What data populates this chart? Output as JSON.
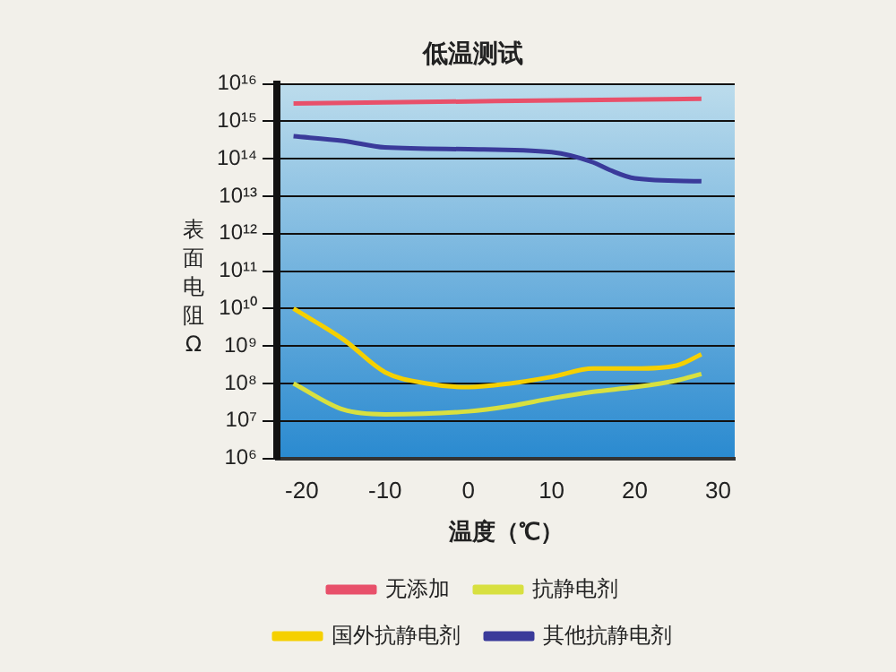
{
  "chart_data": {
    "type": "line",
    "title": "低温测试",
    "xlabel": "温度（℃）",
    "ylabel": "表面电阻Ω",
    "log": "y",
    "grid": "y",
    "legend": "bottom",
    "marker": "none",
    "line_style": "solid",
    "xlim": [
      -23,
      32
    ],
    "xticks": [
      -20,
      -10,
      0,
      10,
      20,
      30
    ],
    "ylim": [
      1000000,
      10000000000000000
    ],
    "yticks": [
      {
        "value": 1000000,
        "label": "10⁶"
      },
      {
        "value": 10000000,
        "label": "10⁷"
      },
      {
        "value": 100000000,
        "label": "10⁸"
      },
      {
        "value": 1000000000,
        "label": "10⁹"
      },
      {
        "value": 10000000000,
        "label": "10¹⁰"
      },
      {
        "value": 100000000000,
        "label": "10¹¹"
      },
      {
        "value": 1000000000000,
        "label": "10¹²"
      },
      {
        "value": 10000000000000,
        "label": "10¹³"
      },
      {
        "value": 100000000000000,
        "label": "10¹⁴"
      },
      {
        "value": 1000000000000000,
        "label": "10¹⁵"
      },
      {
        "value": 10000000000000000,
        "label": "10¹⁶"
      }
    ],
    "series": [
      {
        "name": "无添加",
        "color": "#e8506a",
        "x": [
          -21,
          28
        ],
        "values": [
          3000000000000000,
          4000000000000000
        ]
      },
      {
        "name": "抗静电剂",
        "color": "#d8e040",
        "x": [
          -21,
          -15,
          -10,
          0,
          5,
          10,
          15,
          20,
          25,
          28
        ],
        "values": [
          100000000,
          20000000,
          15000000,
          18000000,
          25000000,
          40000000,
          60000000,
          80000000,
          120000000,
          180000000
        ]
      },
      {
        "name": "国外抗静电剂",
        "color": "#f5d000",
        "x": [
          -21,
          -15,
          -10,
          -5,
          0,
          5,
          10,
          15,
          20,
          25,
          28
        ],
        "values": [
          10000000000,
          1500000000,
          200000000,
          100000000,
          80000000,
          100000000,
          150000000,
          250000000,
          250000000,
          300000000,
          600000000
        ]
      },
      {
        "name": "其他抗静电剂",
        "color": "#3a3a9a",
        "x": [
          -21,
          -15,
          -10,
          0,
          10,
          15,
          17,
          20,
          28
        ],
        "values": [
          400000000000000,
          300000000000000,
          200000000000000,
          180000000000000,
          150000000000000,
          80000000000000,
          50000000000000,
          30000000000000,
          25000000000000
        ]
      }
    ]
  }
}
